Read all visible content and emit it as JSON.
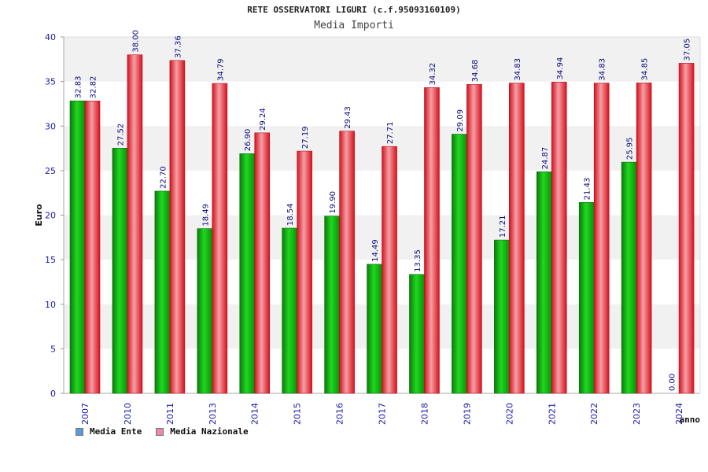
{
  "title": "RETE OSSERVATORI LIGURI (c.f.95093160109)",
  "subtitle": "Media Importi",
  "colors": {
    "ente": "#16b816",
    "nazionale": "#e8212f",
    "legend_ente": "#5b9bd5",
    "legend_nazionale": "#ea86b1",
    "band": "#f1f1f1",
    "axis_text": "#1a1aa6",
    "label_text": "#0b0b80"
  },
  "legend": [
    {
      "label": "Media Ente"
    },
    {
      "label": "Media Nazionale"
    }
  ],
  "chart_data": {
    "type": "bar",
    "title": "RETE OSSERVATORI LIGURI (c.f.95093160109)",
    "subtitle": "Media Importi",
    "xlabel": "anno",
    "ylabel": "Euro",
    "ylim": [
      0,
      40
    ],
    "yticks": [
      0,
      5,
      10,
      15,
      20,
      25,
      30,
      35,
      40
    ],
    "categories": [
      "2007",
      "2010",
      "2011",
      "2013",
      "2014",
      "2015",
      "2016",
      "2017",
      "2018",
      "2019",
      "2020",
      "2021",
      "2022",
      "2023",
      "2024"
    ],
    "series": [
      {
        "name": "Media Ente",
        "values": [
          32.83,
          27.52,
          22.7,
          18.49,
          26.9,
          18.54,
          19.9,
          14.49,
          13.35,
          29.09,
          17.21,
          24.87,
          21.43,
          25.95,
          0.0
        ]
      },
      {
        "name": "Media Nazionale",
        "values": [
          32.82,
          38.0,
          37.36,
          34.79,
          29.24,
          27.19,
          29.43,
          27.71,
          34.32,
          34.68,
          34.83,
          34.94,
          34.83,
          34.85,
          37.05
        ]
      }
    ],
    "value_labels": [
      [
        "32.83",
        "27.52",
        "22.70",
        "18.49",
        "26.90",
        "18.54",
        "19.90",
        "14.49",
        "13.35",
        "29.09",
        "17.21",
        "24.87",
        "21.43",
        "25.95",
        "0.00"
      ],
      [
        "32.82",
        "38.00",
        "37.36",
        "34.79",
        "29.24",
        "27.19",
        "29.43",
        "27.71",
        "34.32",
        "34.68",
        "34.83",
        "34.94",
        "34.83",
        "34.85",
        "37.05"
      ]
    ],
    "legend_position": "bottom-left",
    "grid": "alternating horizontal bands"
  }
}
